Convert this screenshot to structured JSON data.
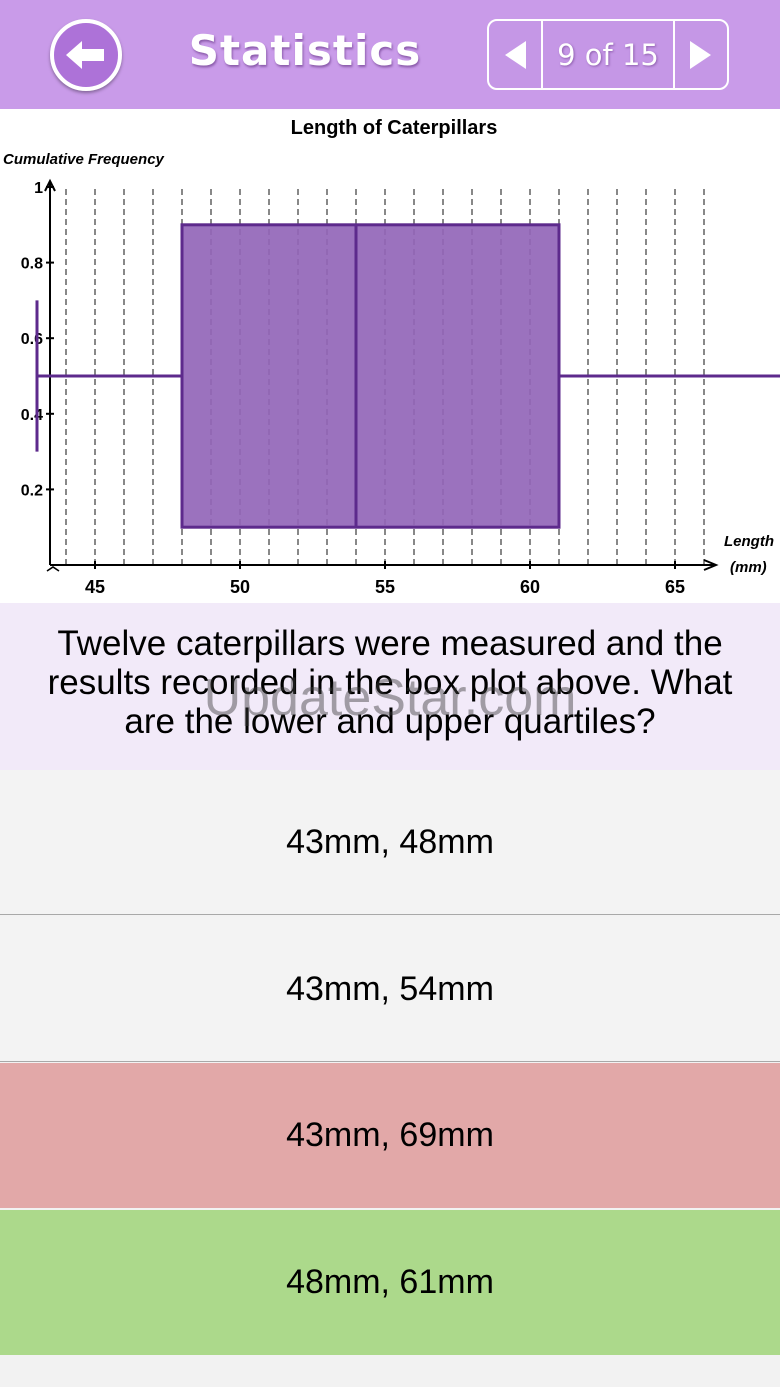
{
  "header": {
    "title": "Statistics",
    "back_icon": "back-arrow-icon",
    "prev_icon": "triangle-left-icon",
    "next_icon": "triangle-right-icon",
    "counter": "9 of 15",
    "accent_color": "#c99be9"
  },
  "chart_data": {
    "type": "box",
    "title": "Length of Caterpillars",
    "ylabel": "Cumulative Frequency",
    "xlabel_line1": "Length",
    "xlabel_line2": "(mm)",
    "x_ticks": [
      45,
      50,
      55,
      60,
      65
    ],
    "y_ticks": [
      "0.2",
      "0.4",
      "0.6",
      "0.8",
      "1"
    ],
    "ylim": [
      0,
      1
    ],
    "box": {
      "min": 43,
      "q1": 48,
      "median": 54,
      "q3": 61,
      "max": 69
    },
    "box_color": "#9366b8",
    "grid": true
  },
  "question": {
    "text": "Twelve caterpillars were measured and the results recorded in the box plot above. What are the lower and upper quartiles?"
  },
  "watermark": "UpdateStar.com",
  "answers": [
    {
      "label": "43mm, 48mm",
      "state": "neutral"
    },
    {
      "label": "43mm, 54mm",
      "state": "neutral"
    },
    {
      "label": "43mm, 69mm",
      "state": "wrong",
      "color": "#e2a8a8"
    },
    {
      "label": "48mm, 61mm",
      "state": "correct",
      "color": "#acd98b"
    }
  ]
}
